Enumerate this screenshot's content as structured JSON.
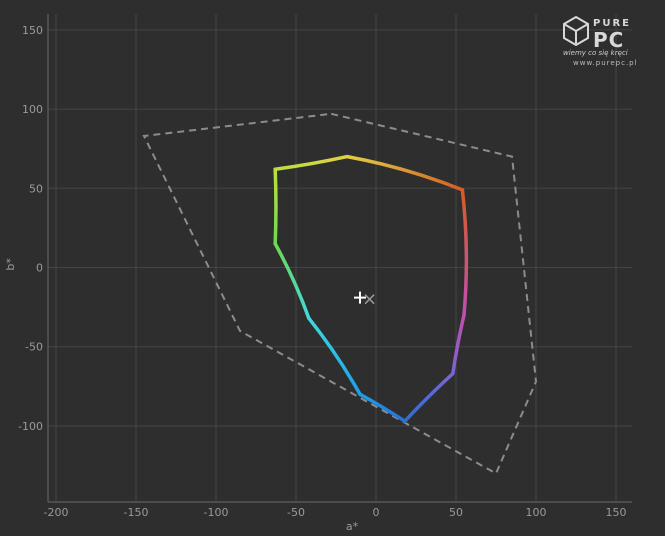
{
  "chart_data": {
    "type": "scatter",
    "title": "",
    "xlabel": "a*",
    "ylabel": "b*",
    "xlim": [
      -205,
      160
    ],
    "ylim": [
      -148,
      160
    ],
    "x_ticks": [
      -200,
      -150,
      -100,
      -50,
      0,
      50,
      100,
      150
    ],
    "y_ticks": [
      -100,
      -50,
      0,
      50,
      100,
      150
    ],
    "x_tick_labels": [
      "-200",
      "-150",
      "-100",
      "-50",
      "0",
      "50",
      "100",
      "150"
    ],
    "y_tick_labels": [
      "-100",
      "-50",
      "0",
      "50",
      "100",
      "150"
    ],
    "grid": true,
    "series": [
      {
        "style": "dashed",
        "color": "#8c8c8c",
        "x": [
          -28,
          85,
          100,
          75,
          -85,
          -145
        ],
        "y": [
          97,
          70,
          -72,
          -130,
          -40,
          83
        ]
      },
      {
        "style": "rainbow-solid",
        "colors": [
          "#e0d045",
          "#d55d24",
          "#c050b0",
          "#7b63d6",
          "#2a6fd2",
          "#1aa0e6",
          "#42d8e0",
          "#6fd84e",
          "#bde03e",
          "#e0d045"
        ],
        "x": [
          -18,
          54,
          55,
          48,
          18,
          -10,
          -42,
          -63,
          -63,
          -18
        ],
        "y": [
          70,
          49,
          -30,
          -67,
          -97,
          -80,
          -32,
          15,
          62,
          70
        ]
      }
    ],
    "markers": [
      {
        "symbol": "+",
        "x": -10,
        "y": -19,
        "color": "#ffffff"
      },
      {
        "symbol": "x",
        "x": -4,
        "y": -20,
        "color": "#9a9a9a"
      }
    ]
  },
  "logo": {
    "brand_top": "PURE",
    "brand_bottom": "PC",
    "tagline": "wiemy co się kręci",
    "url": "www.purepc.pl"
  }
}
